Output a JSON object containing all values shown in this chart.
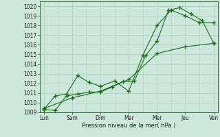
{
  "background_color": "#cce8dd",
  "grid_color": "#aaccbb",
  "line_color": "#1a6b1a",
  "marker_color": "#1a6b1a",
  "xlabel": "Pression niveau de la mer( hPa )",
  "ylim": [
    1009,
    1020.5
  ],
  "yticks": [
    1009,
    1010,
    1011,
    1012,
    1013,
    1014,
    1015,
    1016,
    1017,
    1018,
    1019,
    1020
  ],
  "x_labels": [
    "Lun",
    "Sam",
    "Dim",
    "Mar",
    "Mer",
    "Jeu",
    "Ven"
  ],
  "series1_x": [
    0,
    0.4,
    0.8,
    1.2,
    1.6,
    2.0,
    2.4,
    2.8,
    3.2,
    3.6,
    4.0,
    4.4,
    4.8,
    5.2,
    5.6,
    6.0
  ],
  "series1_y": [
    1009.3,
    1009.2,
    1010.7,
    1010.9,
    1011.1,
    1011.1,
    1011.6,
    1012.2,
    1012.25,
    1014.9,
    1016.35,
    1019.55,
    1019.85,
    1019.2,
    1018.5,
    1016.2
  ],
  "series2_x": [
    0,
    0.4,
    0.8,
    1.2,
    1.6,
    2.0,
    2.5,
    3.0,
    3.5,
    4.0,
    4.5,
    5.0,
    5.5,
    6.0
  ],
  "series2_y": [
    1009.3,
    1010.7,
    1010.9,
    1012.8,
    1012.1,
    1011.7,
    1012.25,
    1011.2,
    1014.9,
    1018.0,
    1019.6,
    1019.0,
    1018.3,
    1018.3
  ],
  "series3_x": [
    0,
    1.0,
    2.0,
    3.0,
    4.0,
    5.0,
    6.0
  ],
  "series3_y": [
    1009.4,
    1010.5,
    1011.2,
    1012.4,
    1015.1,
    1015.8,
    1016.15
  ]
}
